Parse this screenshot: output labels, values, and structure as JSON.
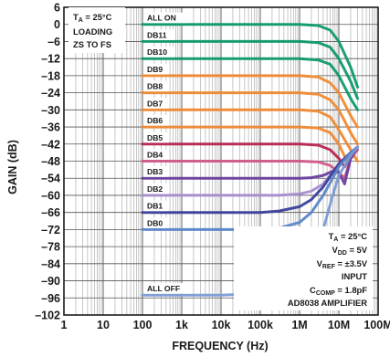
{
  "chart_data": {
    "type": "line",
    "xlabel": "FREQUENCY (Hz)",
    "ylabel": "GAIN (dB)",
    "xscale": "log",
    "xlim": [
      1,
      100000000
    ],
    "ylim": [
      -102,
      6
    ],
    "grid": true,
    "xticks": [
      {
        "value": 1,
        "label": "1"
      },
      {
        "value": 10,
        "label": "10"
      },
      {
        "value": 100,
        "label": "100"
      },
      {
        "value": 1000,
        "label": "1k"
      },
      {
        "value": 10000,
        "label": "10k"
      },
      {
        "value": 100000,
        "label": "100k"
      },
      {
        "value": 1000000,
        "label": "1M"
      },
      {
        "value": 10000000,
        "label": "10M"
      },
      {
        "value": 100000000,
        "label": "100M"
      }
    ],
    "yticks": [
      6,
      0,
      -6,
      -12,
      -18,
      -24,
      -30,
      -36,
      -42,
      -48,
      -54,
      -60,
      -66,
      -72,
      -78,
      -84,
      -90,
      -96,
      -102
    ],
    "annotation_top_left": [
      "T_A = 25°C",
      "LOADING",
      "ZS TO FS"
    ],
    "annotation_conditions": {
      "ta": "T_A = 25°C",
      "vdd": "V_DD = 5V",
      "vref": "V_REF = ±3.5V",
      "vref_note": "INPUT",
      "ccomp": "C_COMP = 1.8pF",
      "amp": "AD8038 AMPLIFIER"
    },
    "series": [
      {
        "name": "ALL ON",
        "color": "#0e9a6c",
        "values": [
          [
            100,
            0
          ],
          [
            1000000,
            0
          ],
          [
            3000000,
            -0.4
          ],
          [
            6000000,
            -2
          ],
          [
            10000000,
            -6
          ],
          [
            20000000,
            -15
          ],
          [
            30000000,
            -22
          ]
        ]
      },
      {
        "name": "DB11",
        "color": "#0e9a6c",
        "values": [
          [
            100,
            -6
          ],
          [
            1000000,
            -6
          ],
          [
            3000000,
            -6.4
          ],
          [
            6000000,
            -8
          ],
          [
            10000000,
            -12
          ],
          [
            20000000,
            -20
          ],
          [
            30000000,
            -26
          ]
        ]
      },
      {
        "name": "DB10",
        "color": "#0e9a6c",
        "values": [
          [
            100,
            -12
          ],
          [
            1000000,
            -12
          ],
          [
            3000000,
            -12.5
          ],
          [
            6000000,
            -14
          ],
          [
            10000000,
            -18
          ],
          [
            20000000,
            -26
          ],
          [
            30000000,
            -30
          ]
        ]
      },
      {
        "name": "DB9",
        "color": "#f08a32",
        "values": [
          [
            100,
            -18
          ],
          [
            1000000,
            -18
          ],
          [
            3000000,
            -18.5
          ],
          [
            6000000,
            -20.5
          ],
          [
            10000000,
            -24
          ],
          [
            20000000,
            -32
          ],
          [
            30000000,
            -36
          ]
        ]
      },
      {
        "name": "DB8",
        "color": "#f08a32",
        "values": [
          [
            100,
            -24
          ],
          [
            1000000,
            -24
          ],
          [
            3000000,
            -24.5
          ],
          [
            6000000,
            -26.5
          ],
          [
            10000000,
            -30
          ],
          [
            20000000,
            -38
          ],
          [
            30000000,
            -42
          ]
        ]
      },
      {
        "name": "DB7",
        "color": "#f08a32",
        "values": [
          [
            100,
            -30
          ],
          [
            1000000,
            -30
          ],
          [
            3000000,
            -30.5
          ],
          [
            6000000,
            -32.5
          ],
          [
            10000000,
            -37
          ],
          [
            20000000,
            -44
          ],
          [
            30000000,
            -48
          ]
        ]
      },
      {
        "name": "DB6",
        "color": "#f08a32",
        "values": [
          [
            100,
            -36
          ],
          [
            1000000,
            -36
          ],
          [
            3000000,
            -36.4
          ],
          [
            6000000,
            -38
          ],
          [
            10000000,
            -42
          ],
          [
            16000000,
            -48
          ],
          [
            25000000,
            -46
          ]
        ]
      },
      {
        "name": "DB5",
        "color": "#b8254f",
        "values": [
          [
            100,
            -42
          ],
          [
            1000000,
            -42
          ],
          [
            3000000,
            -42.4
          ],
          [
            6000000,
            -44
          ],
          [
            10000000,
            -47
          ],
          [
            14000000,
            -50
          ],
          [
            20000000,
            -46
          ],
          [
            30000000,
            -44
          ]
        ]
      },
      {
        "name": "DB4",
        "color": "#d05a88",
        "values": [
          [
            100,
            -48
          ],
          [
            1000000,
            -48
          ],
          [
            3000000,
            -48.3
          ],
          [
            6000000,
            -49.5
          ],
          [
            10000000,
            -52
          ],
          [
            14000000,
            -54
          ],
          [
            20000000,
            -47
          ],
          [
            30000000,
            -44
          ]
        ]
      },
      {
        "name": "DB3",
        "color": "#6a3f9e",
        "values": [
          [
            100,
            -54
          ],
          [
            1000000,
            -54
          ],
          [
            2000000,
            -53.8
          ],
          [
            4000000,
            -53
          ],
          [
            7000000,
            -51.5
          ],
          [
            10000000,
            -52
          ],
          [
            14000000,
            -56
          ],
          [
            20000000,
            -47
          ],
          [
            30000000,
            -43
          ]
        ]
      },
      {
        "name": "DB2",
        "color": "#a78dd0",
        "values": [
          [
            100,
            -60
          ],
          [
            300000,
            -60
          ],
          [
            1000000,
            -59.5
          ],
          [
            2000000,
            -58.5
          ],
          [
            4000000,
            -56
          ],
          [
            7000000,
            -52
          ],
          [
            10000000,
            -49
          ],
          [
            20000000,
            -45
          ],
          [
            30000000,
            -43
          ]
        ]
      },
      {
        "name": "DB1",
        "color": "#3a3f9a",
        "values": [
          [
            100,
            -66
          ],
          [
            100000,
            -66
          ],
          [
            300000,
            -65.5
          ],
          [
            1000000,
            -64
          ],
          [
            2000000,
            -61.5
          ],
          [
            4000000,
            -57
          ],
          [
            7000000,
            -52
          ],
          [
            10000000,
            -49
          ],
          [
            20000000,
            -45
          ],
          [
            30000000,
            -43
          ]
        ]
      },
      {
        "name": "DB0",
        "color": "#5a86c8",
        "values": [
          [
            100,
            -72
          ],
          [
            100000,
            -72
          ],
          [
            300000,
            -71.5
          ],
          [
            1000000,
            -69.5
          ],
          [
            2000000,
            -66
          ],
          [
            4000000,
            -60
          ],
          [
            7000000,
            -54
          ],
          [
            10000000,
            -50
          ],
          [
            20000000,
            -45
          ],
          [
            30000000,
            -43
          ]
        ]
      },
      {
        "name": "ALL OFF",
        "color": "#7a9bd6",
        "values": [
          [
            100,
            -95
          ],
          [
            10000,
            -95
          ],
          [
            100000,
            -94.5
          ],
          [
            300000,
            -93
          ],
          [
            1000000,
            -88
          ],
          [
            2000000,
            -82
          ],
          [
            4000000,
            -72
          ],
          [
            7000000,
            -60
          ],
          [
            10000000,
            -53
          ],
          [
            20000000,
            -46
          ],
          [
            30000000,
            -43
          ]
        ]
      }
    ]
  }
}
